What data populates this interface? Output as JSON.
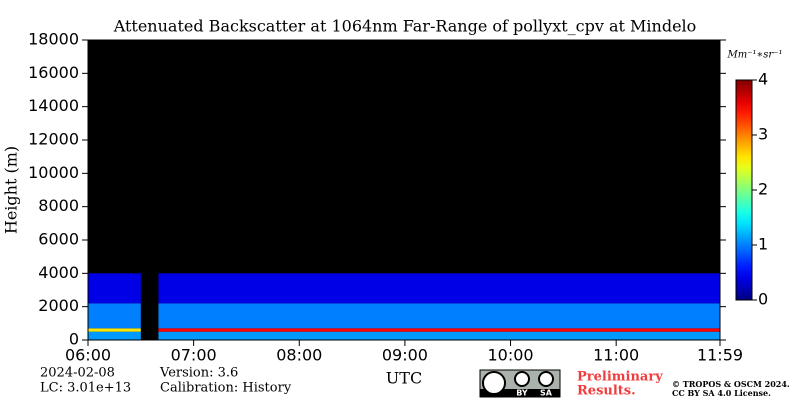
{
  "chart_data": {
    "type": "heatmap",
    "title": "Attenuated Backscatter at 1064nm Far-Range of pollyxt_cpv at Mindelo",
    "y_label": "Height (m)",
    "x_label": "UTC",
    "xlim": [
      6,
      11.983
    ],
    "xticks": [
      {
        "value": 6,
        "label": "06:00"
      },
      {
        "value": 7,
        "label": "07:00"
      },
      {
        "value": 8,
        "label": "08:00"
      },
      {
        "value": 9,
        "label": "09:00"
      },
      {
        "value": 10,
        "label": "10:00"
      },
      {
        "value": 11,
        "label": "11:00"
      },
      {
        "value": 11.983,
        "label": "11:59"
      }
    ],
    "ylim": [
      0,
      18000
    ],
    "yticks": [
      0,
      2000,
      4000,
      6000,
      8000,
      10000,
      12000,
      14000,
      16000,
      18000
    ],
    "colormap": "jet",
    "background": "#000000",
    "clim": [
      0,
      4
    ],
    "cticks": [
      0,
      1,
      2,
      3,
      4
    ],
    "colorbar_unit": "Mm⁻¹∗sr⁻¹",
    "cells": [
      {
        "x": [
          6,
          6.5
        ],
        "y": [
          0,
          500
        ],
        "value": 1.1
      },
      {
        "x": [
          6,
          6.5
        ],
        "y": [
          500,
          700
        ],
        "value": 2.6
      },
      {
        "x": [
          6,
          6.5
        ],
        "y": [
          700,
          2200
        ],
        "value": 1.0
      },
      {
        "x": [
          6,
          6.5
        ],
        "y": [
          2200,
          4000
        ],
        "value": 0.4
      },
      {
        "x": [
          6.667,
          11.983
        ],
        "y": [
          0,
          500
        ],
        "value": 1.1
      },
      {
        "x": [
          6.667,
          11.983
        ],
        "y": [
          500,
          700
        ],
        "value": 3.5
      },
      {
        "x": [
          6.667,
          11.983
        ],
        "y": [
          700,
          2200
        ],
        "value": 1.0
      },
      {
        "x": [
          6.667,
          11.983
        ],
        "y": [
          2200,
          4000
        ],
        "value": 0.4
      }
    ],
    "footer": {
      "date": "2024-02-08",
      "lc": "LC: 3.01e+13",
      "version": "Version: 3.6",
      "calibration": "Calibration: History",
      "preliminary": [
        "Preliminary",
        "Results."
      ],
      "badge": [
        "BY",
        "SA"
      ],
      "copyright": [
        "© TROPOS & OSCM 2024.",
        "CC BY SA 4.0 License."
      ]
    }
  }
}
